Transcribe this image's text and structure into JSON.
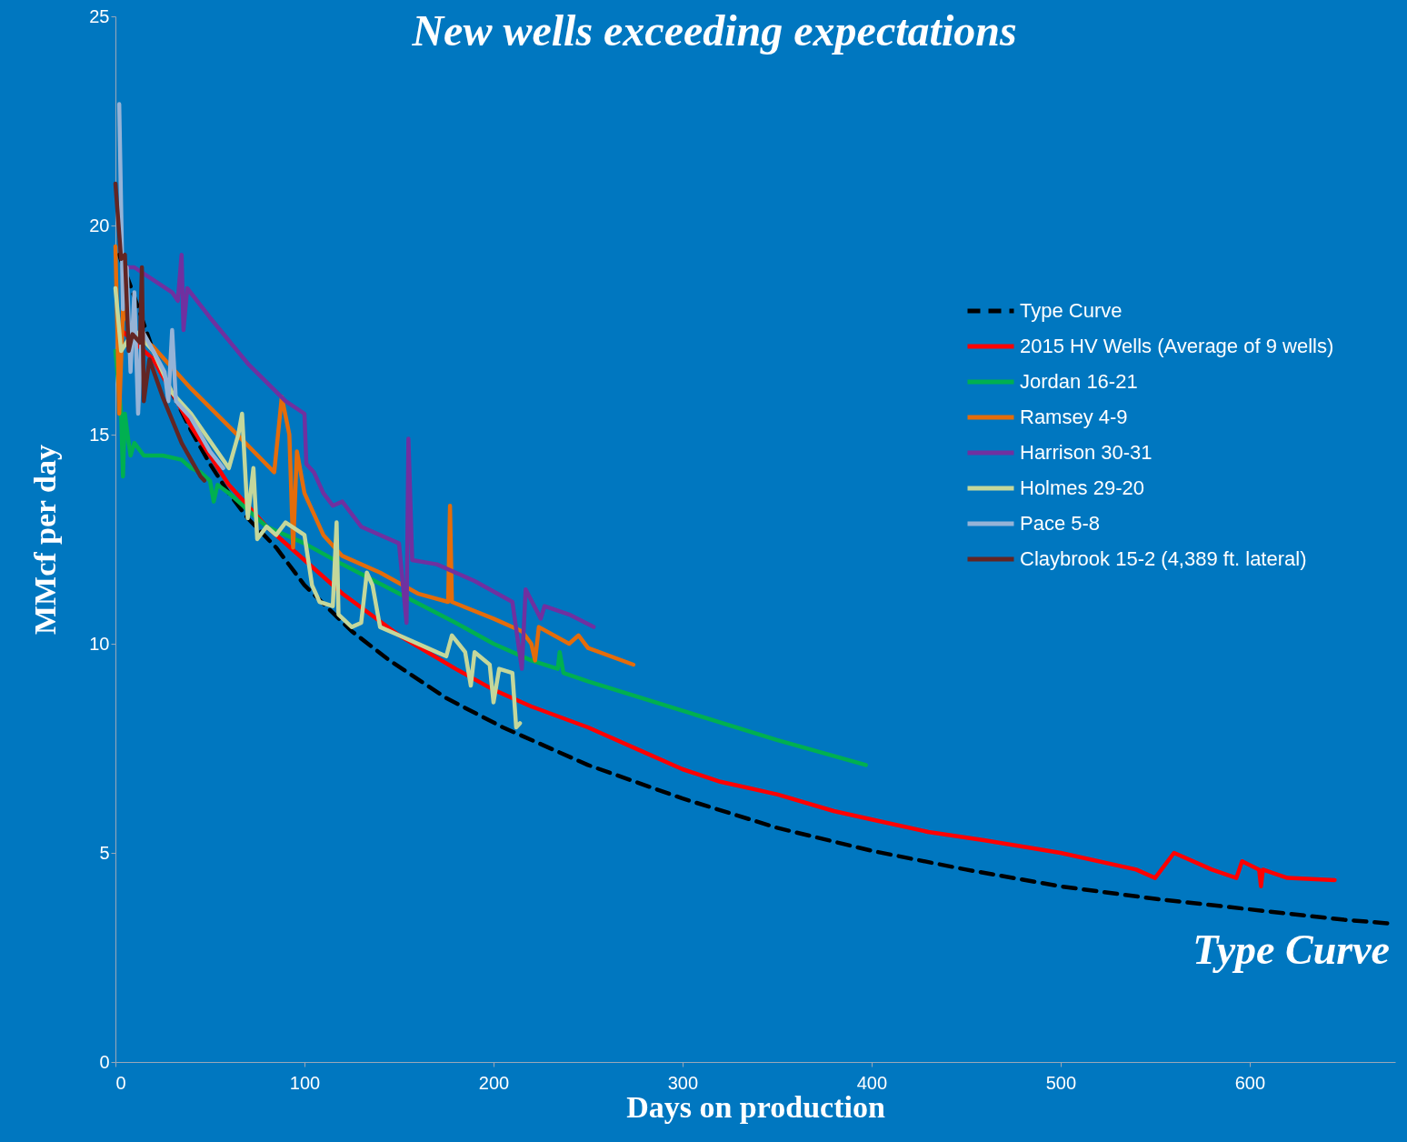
{
  "chart_data": {
    "type": "line",
    "title": "New wells exceeding expectations",
    "xlabel": "Days on production",
    "ylabel": "MMcf per day",
    "xlim": [
      0,
      677
    ],
    "xticks": [
      0,
      100,
      200,
      300,
      400,
      500,
      600
    ],
    "ylim": [
      0,
      25
    ],
    "yticks": [
      0,
      5,
      10,
      15,
      20,
      25
    ],
    "grid": false,
    "legend": "right",
    "annotations": [
      "Type Curve"
    ],
    "series": [
      {
        "name": "Type Curve",
        "color": "#000000",
        "line_style": "dashed",
        "x": [
          2,
          10,
          20,
          30,
          40,
          50,
          60,
          70,
          85,
          100,
          125,
          145,
          175,
          205,
          250,
          300,
          350,
          400,
          450,
          500,
          550,
          600,
          650,
          677
        ],
        "values": [
          19.3,
          18.3,
          17.0,
          16.0,
          15.1,
          14.3,
          13.6,
          13.0,
          12.3,
          11.4,
          10.3,
          9.6,
          8.7,
          8.0,
          7.1,
          6.3,
          5.6,
          5.05,
          4.6,
          4.2,
          3.9,
          3.65,
          3.4,
          3.3
        ]
      },
      {
        "name": "2015 HV Wells (Average of 9 wells)",
        "color": "#ff0000",
        "line_style": "solid",
        "x": [
          3,
          20,
          40,
          60,
          80,
          100,
          120,
          150,
          180,
          200,
          220,
          250,
          280,
          300,
          320,
          350,
          380,
          400,
          430,
          460,
          500,
          540,
          550,
          560,
          580,
          593,
          596,
          605,
          606,
          607,
          620,
          645
        ],
        "values": [
          17.5,
          16.8,
          15.2,
          13.8,
          12.8,
          12.0,
          11.2,
          10.2,
          9.4,
          8.9,
          8.5,
          8.0,
          7.4,
          7.0,
          6.7,
          6.4,
          6.0,
          5.8,
          5.5,
          5.3,
          5.0,
          4.6,
          4.4,
          5.0,
          4.6,
          4.4,
          4.8,
          4.6,
          4.2,
          4.6,
          4.4,
          4.35
        ]
      },
      {
        "name": "Jordan 16-21",
        "color": "#00b050",
        "line_style": "solid",
        "x": [
          0,
          3,
          4,
          5,
          7,
          8,
          10,
          15,
          25,
          35,
          40,
          45,
          50,
          52,
          54,
          60,
          80,
          100,
          120,
          150,
          180,
          200,
          220,
          234,
          235,
          237,
          250,
          300,
          350,
          397
        ],
        "values": [
          17.0,
          15.5,
          14.0,
          15.5,
          14.8,
          14.5,
          14.8,
          14.5,
          14.5,
          14.4,
          14.2,
          14.1,
          13.9,
          13.4,
          13.8,
          13.6,
          12.8,
          12.4,
          11.9,
          11.2,
          10.5,
          10.0,
          9.6,
          9.4,
          9.8,
          9.3,
          9.1,
          8.4,
          7.7,
          7.1
        ]
      },
      {
        "name": "Ramsey 4-9",
        "color": "#e46c0a",
        "line_style": "solid",
        "x": [
          0,
          2,
          4,
          8,
          20,
          40,
          60,
          84,
          88,
          92,
          94,
          96,
          100,
          110,
          120,
          140,
          160,
          176,
          177,
          178,
          200,
          215,
          220,
          222,
          224,
          240,
          245,
          250,
          274
        ],
        "values": [
          19.5,
          15.5,
          18.0,
          17.5,
          17.1,
          16.1,
          15.2,
          14.1,
          15.9,
          15.0,
          12.3,
          14.6,
          13.6,
          12.6,
          12.1,
          11.7,
          11.2,
          11.0,
          13.3,
          11.0,
          10.6,
          10.3,
          10.0,
          9.6,
          10.4,
          10.0,
          10.2,
          9.9,
          9.5
        ]
      },
      {
        "name": "Harrison 30-31",
        "color": "#7030a0",
        "line_style": "solid",
        "x": [
          5,
          10,
          20,
          30,
          33,
          35,
          36,
          38,
          50,
          70,
          90,
          100,
          101,
          105,
          110,
          115,
          120,
          130,
          150,
          154,
          155,
          157,
          170,
          190,
          210,
          215,
          217,
          225,
          227,
          240,
          253
        ],
        "values": [
          19.0,
          19.0,
          18.7,
          18.4,
          18.2,
          19.3,
          17.5,
          18.5,
          17.8,
          16.7,
          15.8,
          15.5,
          14.3,
          14.1,
          13.6,
          13.3,
          13.4,
          12.8,
          12.4,
          10.5,
          14.9,
          12.0,
          11.9,
          11.5,
          11.0,
          9.4,
          11.3,
          10.6,
          10.9,
          10.7,
          10.4
        ]
      },
      {
        "name": "Holmes 29-20",
        "color": "#c4d79b",
        "line_style": "solid",
        "x": [
          0,
          3,
          10,
          20,
          30,
          40,
          60,
          65,
          67,
          70,
          73,
          75,
          80,
          85,
          90,
          100,
          104,
          108,
          115,
          117,
          118,
          125,
          130,
          133,
          136,
          140,
          150,
          165,
          175,
          178,
          185,
          188,
          190,
          198,
          200,
          203,
          210,
          212,
          214
        ],
        "values": [
          18.5,
          17.0,
          17.5,
          17.0,
          16.0,
          15.5,
          14.2,
          15.0,
          15.5,
          13.0,
          14.2,
          12.5,
          12.8,
          12.6,
          12.9,
          12.6,
          11.4,
          11.0,
          10.9,
          12.9,
          10.7,
          10.4,
          10.5,
          11.7,
          11.4,
          10.4,
          10.2,
          9.9,
          9.7,
          10.2,
          9.8,
          9.0,
          9.8,
          9.5,
          8.6,
          9.4,
          9.3,
          8.0,
          8.1
        ]
      },
      {
        "name": "Pace 5-8",
        "color": "#95b3d7",
        "line_style": "solid",
        "x": [
          2,
          4,
          6,
          8,
          10,
          12,
          14,
          20,
          26,
          28,
          30,
          32,
          40,
          50,
          57
        ],
        "values": [
          22.9,
          18.0,
          19.0,
          16.5,
          18.4,
          15.5,
          17.5,
          17.0,
          16.5,
          15.8,
          17.5,
          15.8,
          15.4,
          14.6,
          14.2
        ]
      },
      {
        "name": "Claybrook 15-2 (4,389 ft. lateral)",
        "color": "#632523",
        "line_style": "solid",
        "x": [
          0,
          3,
          5,
          7,
          9,
          13,
          14,
          15,
          18,
          25,
          35,
          45,
          47
        ],
        "values": [
          21.0,
          19.2,
          19.3,
          17.0,
          17.4,
          17.2,
          19.0,
          15.8,
          16.8,
          15.9,
          14.8,
          14.0,
          13.9
        ]
      }
    ]
  }
}
